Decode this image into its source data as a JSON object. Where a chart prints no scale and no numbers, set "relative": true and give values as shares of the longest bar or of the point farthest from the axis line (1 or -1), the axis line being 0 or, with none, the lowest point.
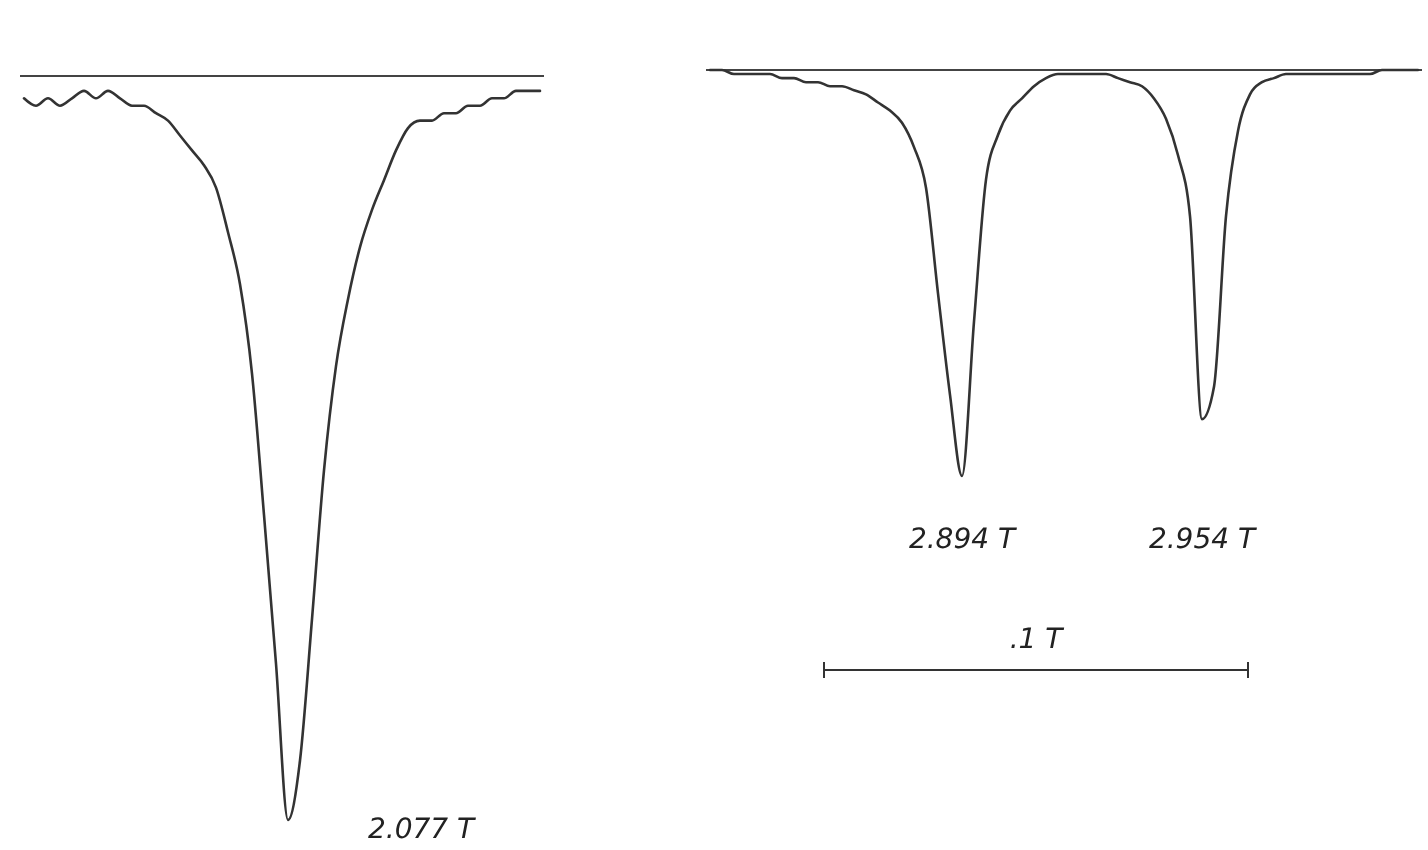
{
  "chart_data": [
    {
      "type": "line",
      "relative": true,
      "categories": [
        null,
        null,
        null,
        null,
        null,
        null,
        null,
        null,
        null,
        null,
        null,
        null,
        null,
        null,
        null,
        null,
        null,
        null,
        null,
        null,
        null,
        null,
        null,
        null,
        null,
        null,
        null,
        null,
        null,
        null,
        null,
        null,
        null,
        null,
        null,
        null,
        null,
        null,
        null,
        null,
        null,
        null,
        null,
        null
      ],
      "series": [
        {
          "color": "#333333",
          "values": [
            -0.03,
            -0.04,
            -0.03,
            -0.04,
            -0.03,
            -0.02,
            -0.03,
            -0.02,
            -0.03,
            -0.04,
            -0.04,
            -0.05,
            -0.06,
            -0.08,
            -0.1,
            -0.12,
            -0.15,
            -0.21,
            -0.28,
            -0.4,
            -0.59,
            -0.79,
            -1,
            -0.92,
            -0.73,
            -0.53,
            -0.39,
            -0.3,
            -0.23,
            -0.18,
            -0.14,
            -0.1,
            -0.07,
            -0.06,
            -0.06,
            -0.05,
            -0.05,
            -0.04,
            -0.04,
            -0.03,
            -0.03,
            -0.02,
            -0.02,
            -0.02
          ]
        }
      ],
      "annotations": [
        "2.077 T"
      ]
    },
    {
      "type": "line",
      "relative": true,
      "categories": [
        null,
        null,
        null,
        null,
        null,
        null,
        null,
        null,
        null,
        null,
        null,
        null,
        null,
        null,
        null,
        null,
        null,
        null,
        null,
        null,
        null,
        null,
        null,
        null,
        null,
        null,
        null,
        null,
        null,
        null,
        null,
        null,
        null,
        null,
        null,
        null,
        null,
        null,
        null,
        null,
        null,
        null,
        null,
        null,
        null,
        null,
        null,
        null,
        null,
        null,
        null,
        null,
        null,
        null,
        null,
        null,
        null,
        null,
        null,
        null
      ],
      "series": [
        {
          "color": "#333333",
          "values": [
            0,
            0,
            -0.01,
            -0.01,
            -0.01,
            -0.01,
            -0.02,
            -0.02,
            -0.03,
            -0.03,
            -0.04,
            -0.04,
            -0.05,
            -0.06,
            -0.08,
            -0.1,
            -0.13,
            -0.19,
            -0.29,
            -0.55,
            -0.8,
            -1,
            -0.62,
            -0.27,
            -0.16,
            -0.1,
            -0.07,
            -0.04,
            -0.02,
            -0.01,
            -0.01,
            -0.01,
            -0.01,
            -0.01,
            -0.02,
            -0.03,
            -0.04,
            -0.07,
            -0.12,
            -0.21,
            -0.36,
            -0.86,
            -0.78,
            -0.36,
            -0.15,
            -0.06,
            -0.03,
            -0.02,
            -0.01,
            -0.01,
            -0.01,
            -0.01,
            -0.01,
            -0.01,
            -0.01,
            -0.01,
            0,
            0,
            0,
            0
          ]
        }
      ],
      "annotations": [
        "2.894 T",
        "2.954 T",
        ".1 T"
      ]
    }
  ]
}
